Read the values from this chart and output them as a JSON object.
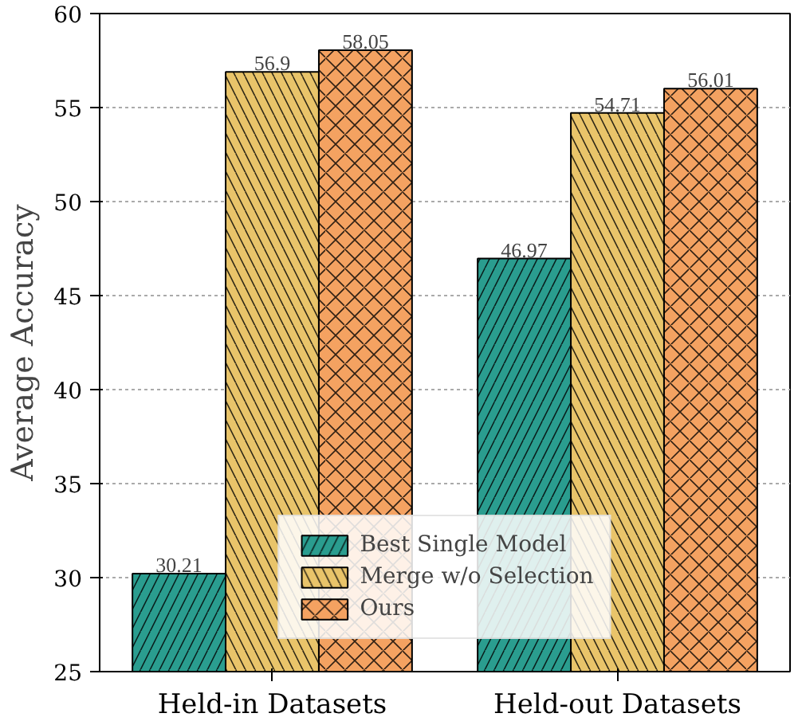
{
  "chart_data": {
    "type": "bar",
    "ylabel": "Average Accuracy",
    "categories": [
      "Held-in Datasets",
      "Held-out Datasets"
    ],
    "series": [
      {
        "name": "Best Single Model",
        "color": "#2a9d8f",
        "values": [
          30.21,
          46.97
        ]
      },
      {
        "name": "Merge w/o Selection",
        "color": "#e9c46a",
        "values": [
          56.9,
          54.71
        ]
      },
      {
        "name": "Ours",
        "color": "#f4a261",
        "values": [
          58.05,
          56.01
        ]
      }
    ],
    "ylim": [
      25,
      60
    ],
    "yticks": [
      25,
      30,
      35,
      40,
      45,
      50,
      55,
      60
    ],
    "grid": "y",
    "legend": "bottom",
    "data_labels": true
  }
}
